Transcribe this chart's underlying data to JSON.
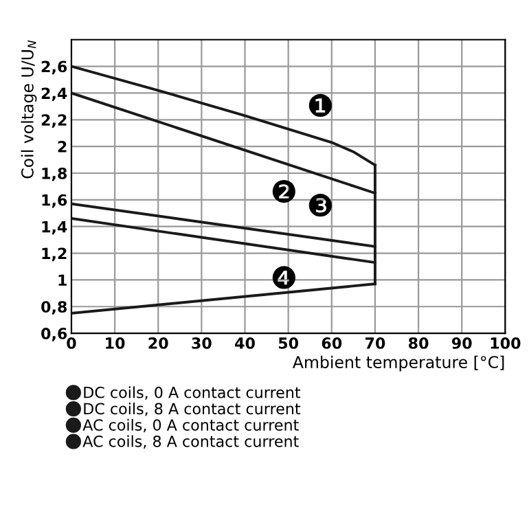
{
  "chart_data": {
    "type": "line",
    "xlabel": "Ambient temperature [°C]",
    "ylabel": "Coil voltage U/U$_{N}$",
    "series": [
      {
        "name": "DC coils, 0 A contact current",
        "color": "#1a1a1a",
        "x": [
          0,
          20,
          40,
          60,
          65,
          70
        ],
        "values": [
          2.6,
          2.42,
          2.23,
          2.03,
          1.96,
          1.86
        ]
      },
      {
        "name": "DC coils, 8 A contact current",
        "color": "#1a1a1a",
        "x": [
          0,
          70
        ],
        "values": [
          2.4,
          1.65
        ]
      },
      {
        "name": "AC coils, 0 A contact current",
        "color": "#1a1a1a",
        "x": [
          0,
          70
        ],
        "values": [
          1.57,
          1.25
        ]
      },
      {
        "name": "AC coils, 8 A contact current",
        "color": "#1a1a1a",
        "x": [
          0,
          70
        ],
        "values": [
          1.46,
          1.13
        ]
      },
      {
        "color": "#1a1a1a",
        "x": [
          0,
          70
        ],
        "values": [
          0.75,
          0.97
        ]
      },
      {
        "color": "#1a1a1a",
        "x": [
          70,
          70
        ],
        "values": [
          0.97,
          1.86
        ]
      }
    ],
    "annotations": [
      "❶",
      "❷",
      "❸",
      "❹"
    ],
    "xlim": [
      0,
      100
    ],
    "xticks": [
      0,
      10,
      20,
      30,
      40,
      50,
      60,
      70,
      80,
      90,
      100
    ],
    "ylim": [
      0.6,
      2.8
    ],
    "yticks": [
      {
        "value": 0.6,
        "label": "0,6"
      },
      {
        "value": 0.8,
        "label": "0,8"
      },
      1,
      {
        "value": 1.2,
        "label": "1,2"
      },
      {
        "value": 1.4,
        "label": "1,4"
      },
      {
        "value": 1.6,
        "label": "1,6"
      },
      {
        "value": 1.8,
        "label": "1,8"
      },
      2,
      {
        "value": 2.2,
        "label": "2,2"
      },
      {
        "value": 2.4,
        "label": "2,4"
      },
      {
        "value": 2.6,
        "label": "2,6"
      }
    ],
    "grid": true,
    "legend": "bottom",
    "marker": "none",
    "line_style": "solid"
  }
}
